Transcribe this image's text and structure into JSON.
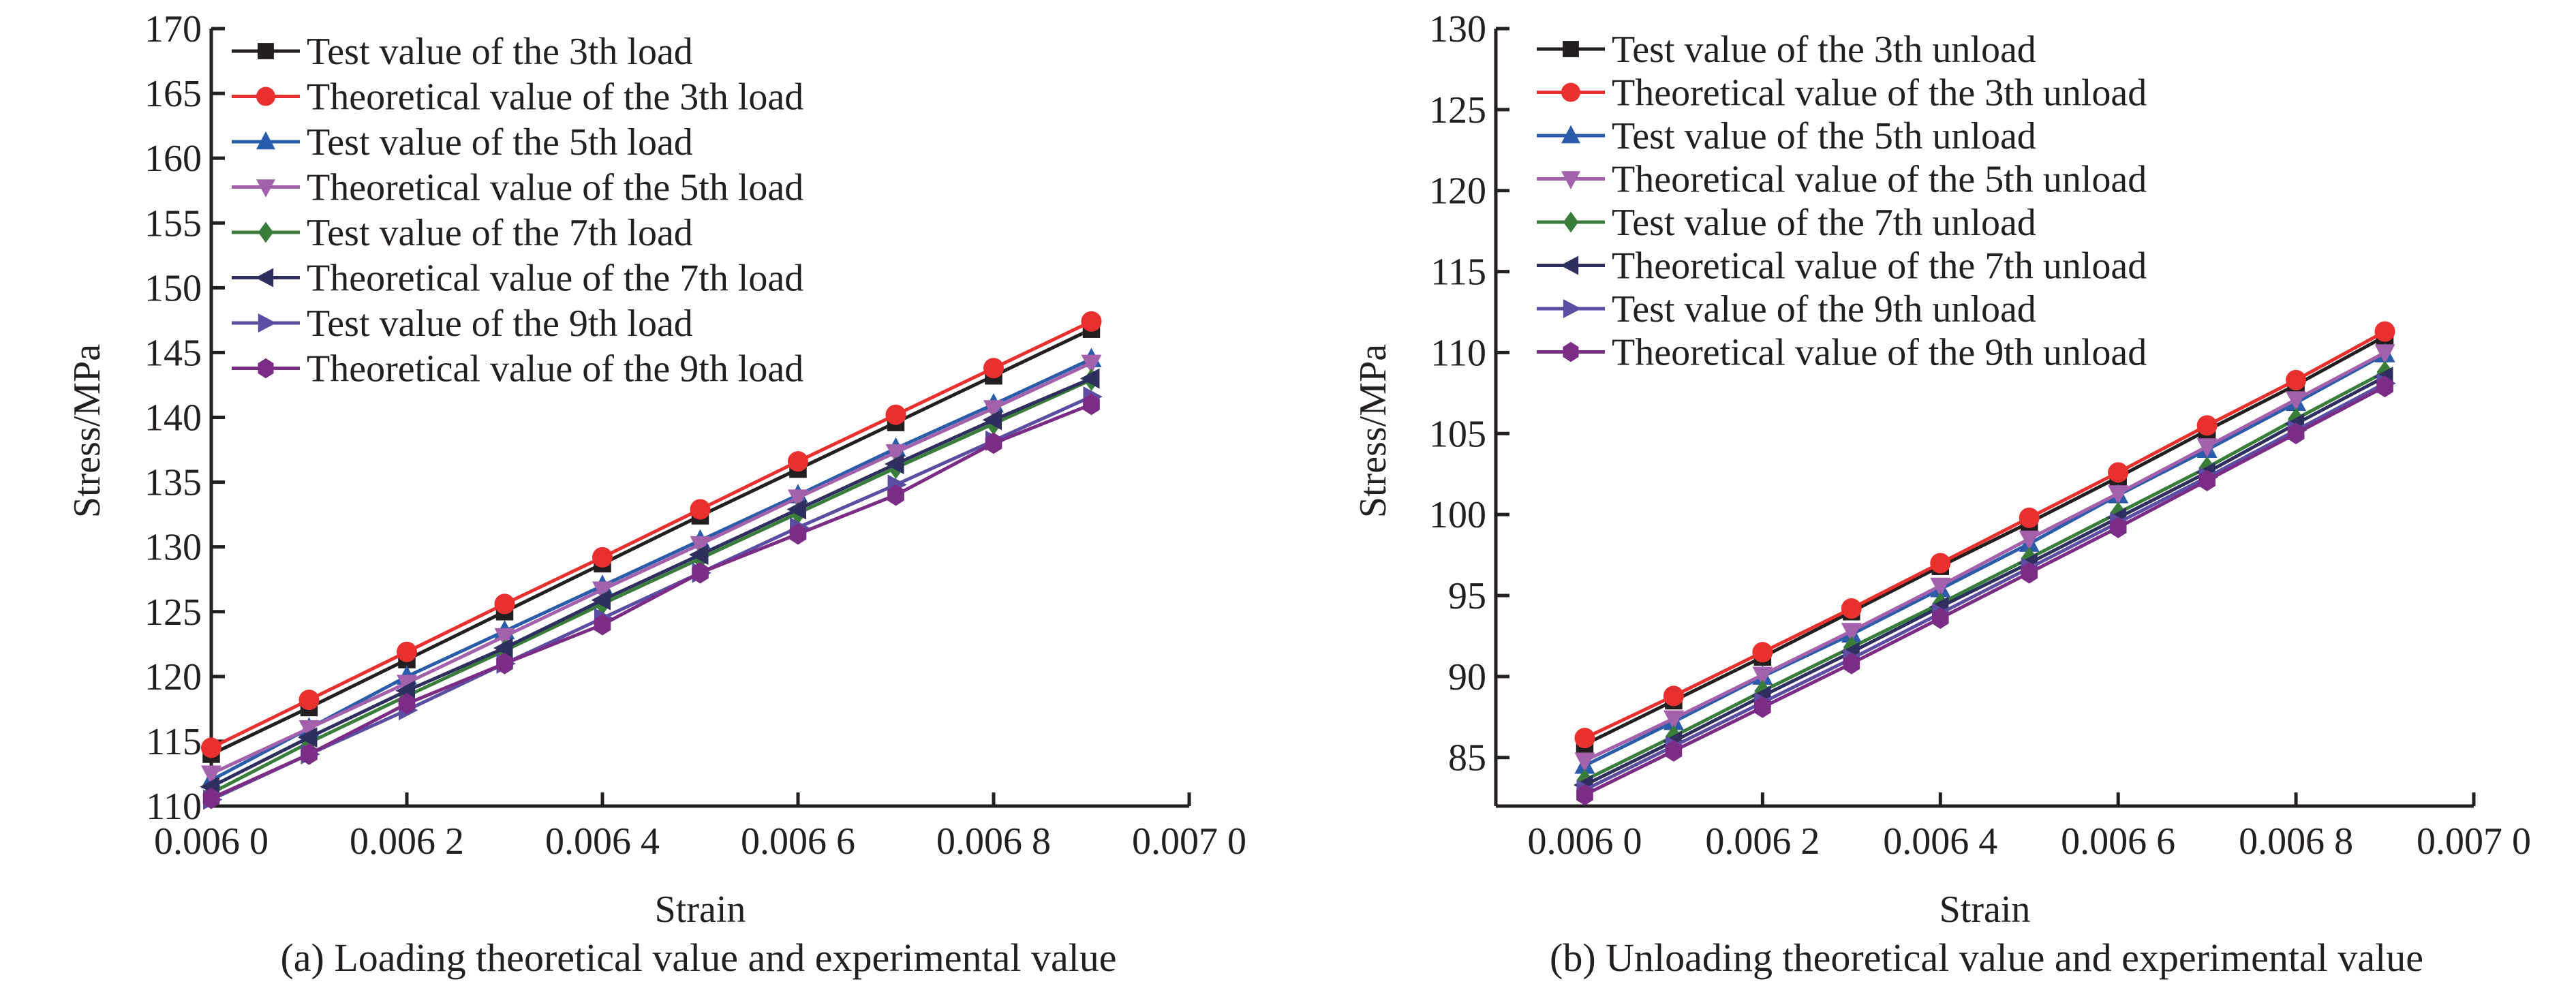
{
  "chart_data": [
    {
      "type": "line",
      "caption": "(a) Loading theoretical value and experimental value",
      "xlabel": "Strain",
      "ylabel": "Stress/MPa",
      "xlim": [
        0.006,
        0.007
      ],
      "ylim": [
        110,
        170
      ],
      "xticks": [
        0.006,
        0.0062,
        0.0064,
        0.0066,
        0.0068,
        0.007
      ],
      "xtick_labels": [
        "0.006 0",
        "0.006 2",
        "0.006 4",
        "0.006 6",
        "0.006 8",
        "0.007 0"
      ],
      "yticks": [
        110,
        115,
        120,
        125,
        130,
        135,
        140,
        145,
        150,
        155,
        160,
        165,
        170
      ],
      "ytick_labels": [
        "110",
        "115",
        "120",
        "125",
        "130",
        "135",
        "140",
        "145",
        "150",
        "155",
        "160",
        "165",
        "170"
      ],
      "grid": false,
      "legend_position": "top-left",
      "x": [
        0.006,
        0.0061,
        0.0062,
        0.0063,
        0.0064,
        0.0065,
        0.0066,
        0.0067,
        0.0068,
        0.0069
      ],
      "series": [
        {
          "name": "Test value of the 3th load",
          "color": "#231f20",
          "marker": "square",
          "values": [
            114.0,
            117.6,
            121.3,
            125.0,
            128.7,
            132.4,
            136.0,
            139.6,
            143.2,
            146.8
          ]
        },
        {
          "name": "Theoretical value of the 3th load",
          "color": "#e8312f",
          "marker": "circle",
          "values": [
            114.5,
            118.2,
            121.9,
            125.6,
            129.2,
            132.9,
            136.6,
            140.2,
            143.8,
            147.4
          ]
        },
        {
          "name": "Test value of the 5th load",
          "color": "#2a5caa",
          "marker": "triangle-up",
          "values": [
            112.0,
            116.0,
            120.0,
            123.5,
            127.0,
            130.5,
            134.0,
            137.6,
            141.0,
            144.5
          ]
        },
        {
          "name": "Theoretical value of the 5th load",
          "color": "#a461ab",
          "marker": "triangle-down",
          "values": [
            112.5,
            116.0,
            119.5,
            123.1,
            126.7,
            130.2,
            133.8,
            137.3,
            140.7,
            144.2
          ]
        },
        {
          "name": "Test value of the 7th load",
          "color": "#3a7d3b",
          "marker": "diamond",
          "values": [
            111.0,
            114.9,
            118.5,
            122.0,
            125.6,
            129.1,
            132.6,
            136.1,
            139.5,
            142.9
          ]
        },
        {
          "name": "Theoretical value of the 7th load",
          "color": "#2e2f5e",
          "marker": "triangle-left",
          "values": [
            111.5,
            115.3,
            118.9,
            122.2,
            125.9,
            129.4,
            132.9,
            136.4,
            139.8,
            143.0
          ]
        },
        {
          "name": "Test value of the 9th load",
          "color": "#5b4ea2",
          "marker": "triangle-right",
          "values": [
            110.5,
            114.0,
            117.4,
            121.0,
            124.5,
            128.0,
            131.5,
            134.8,
            138.2,
            141.6
          ]
        },
        {
          "name": "Theoretical value of the 9th load",
          "color": "#7b2d86",
          "marker": "hexagon",
          "values": [
            110.6,
            114.0,
            117.9,
            121.0,
            124.0,
            128.0,
            131.0,
            134.0,
            138.0,
            141.0
          ]
        }
      ]
    },
    {
      "type": "line",
      "caption": "(b) Unloading theoretical value and experimental value",
      "xlabel": "Strain",
      "ylabel": "Stress/MPa",
      "xlim": [
        0.0059,
        0.007
      ],
      "ylim": [
        82,
        130
      ],
      "xticks": [
        0.006,
        0.0062,
        0.0064,
        0.0066,
        0.0068,
        0.007
      ],
      "xtick_labels": [
        "0.006 0",
        "0.006 2",
        "0.006 4",
        "0.006 6",
        "0.006 8",
        "0.007 0"
      ],
      "yticks": [
        85,
        90,
        95,
        100,
        105,
        110,
        115,
        120,
        125,
        130
      ],
      "ytick_labels": [
        "85",
        "90",
        "95",
        "100",
        "105",
        "110",
        "115",
        "120",
        "125",
        "130"
      ],
      "grid": false,
      "legend_position": "top-left",
      "x": [
        0.006,
        0.0061,
        0.0062,
        0.0063,
        0.0064,
        0.0065,
        0.0066,
        0.0067,
        0.0068,
        0.0069
      ],
      "series": [
        {
          "name": "Test value of the 3th unload",
          "color": "#231f20",
          "marker": "square",
          "values": [
            85.8,
            88.5,
            91.2,
            94.0,
            96.8,
            99.5,
            102.3,
            105.2,
            108.0,
            111.0
          ]
        },
        {
          "name": "Theoretical value of the 3th unload",
          "color": "#e8312f",
          "marker": "circle",
          "values": [
            86.2,
            88.8,
            91.5,
            94.2,
            97.0,
            99.8,
            102.6,
            105.5,
            108.3,
            111.3
          ]
        },
        {
          "name": "Test value of the 5th unload",
          "color": "#2a5caa",
          "marker": "triangle-up",
          "values": [
            84.5,
            87.2,
            90.0,
            92.6,
            95.4,
            98.2,
            101.2,
            104.0,
            106.9,
            109.9
          ]
        },
        {
          "name": "Theoretical value of the 5th unload",
          "color": "#a461ab",
          "marker": "triangle-down",
          "values": [
            84.8,
            87.4,
            90.1,
            92.8,
            95.6,
            98.5,
            101.3,
            104.2,
            107.1,
            110.0
          ]
        },
        {
          "name": "Test value of the 7th unload",
          "color": "#3a7d3b",
          "marker": "diamond",
          "values": [
            83.6,
            86.3,
            89.1,
            91.8,
            94.5,
            97.3,
            100.1,
            102.9,
            105.9,
            108.8
          ]
        },
        {
          "name": "Theoretical value of the 7th unload",
          "color": "#2e2f5e",
          "marker": "triangle-left",
          "values": [
            83.3,
            86.0,
            88.8,
            91.5,
            94.3,
            97.0,
            99.8,
            102.6,
            105.6,
            108.5
          ]
        },
        {
          "name": "Test value of the 9th unload",
          "color": "#5b4ea2",
          "marker": "triangle-right",
          "values": [
            83.0,
            85.7,
            88.4,
            91.1,
            93.9,
            96.7,
            99.5,
            102.3,
            105.2,
            108.1
          ]
        },
        {
          "name": "Theoretical value of the 9th unload",
          "color": "#7b2d86",
          "marker": "hexagon",
          "values": [
            82.7,
            85.4,
            88.1,
            90.8,
            93.6,
            96.4,
            99.2,
            102.1,
            105.0,
            107.9
          ]
        }
      ]
    }
  ]
}
